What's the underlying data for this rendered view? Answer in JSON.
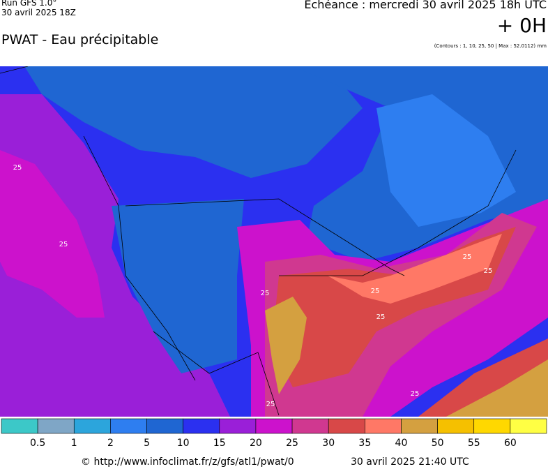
{
  "header": {
    "run": "Run GFS 1.0°",
    "run_date": "30 avril 2025 18Z",
    "title": "PWAT - Eau précipitable",
    "echeance": "Echéance : mercredi 30 avril 2025 18h UTC",
    "offset": "+ 0H",
    "contours": "(Contours : 1, 10, 25, 50 | Max : 52.0112) mm"
  },
  "map": {
    "contour_labels": [
      "25",
      "25",
      "25",
      "25",
      "25",
      "25",
      "25",
      "25",
      "25"
    ]
  },
  "legend": {
    "colors": [
      "#3cc8c8",
      "#7fa6c6",
      "#2ca5dc",
      "#2e7ef0",
      "#1f66d2",
      "#2b30f0",
      "#9a1fd8",
      "#cc12cc",
      "#d03890",
      "#d84848",
      "#ff7866",
      "#d4a040",
      "#f5c000",
      "#ffd800",
      "#ffff44"
    ],
    "labels": [
      "0.5",
      "1",
      "2",
      "5",
      "10",
      "15",
      "20",
      "25",
      "30",
      "35",
      "40",
      "50",
      "55",
      "60"
    ]
  },
  "footer": {
    "source": "© http://www.infoclimat.fr/z/gfs/atl1/pwat/0",
    "generated": "30 avril 2025 21:40 UTC"
  }
}
